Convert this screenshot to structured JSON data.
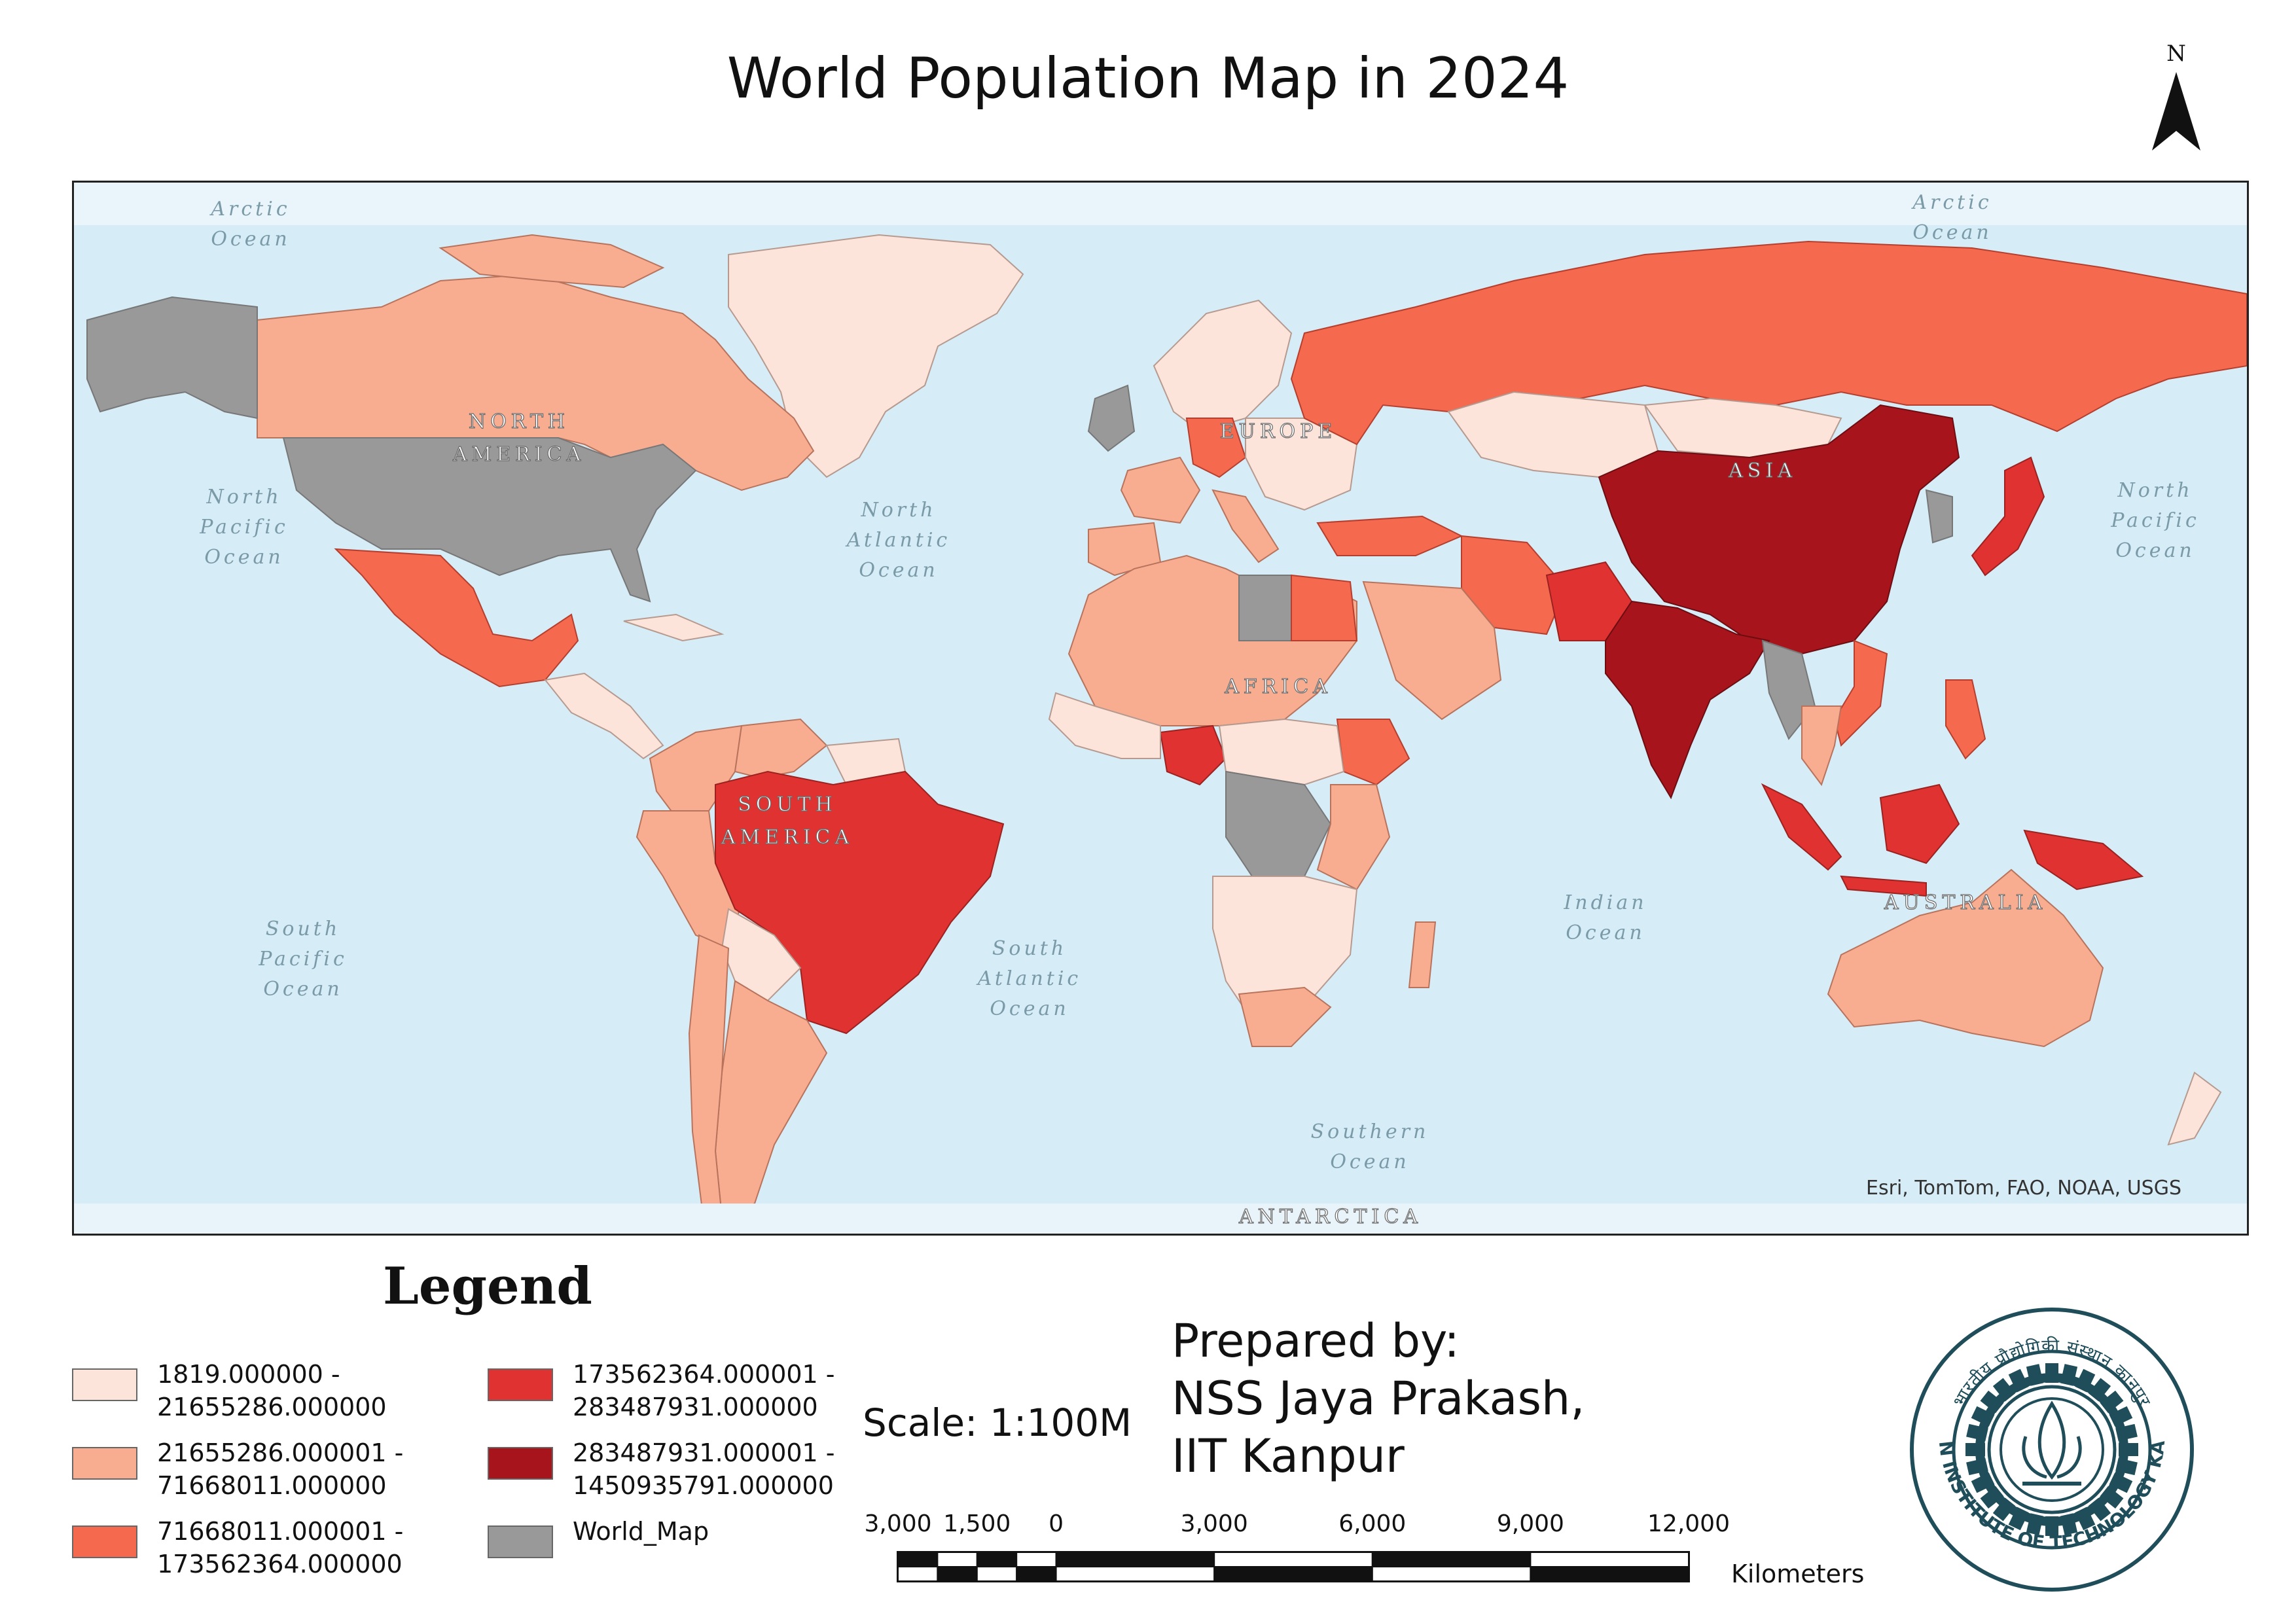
{
  "title": "World Population Map in 2024",
  "north_label": "N",
  "attribution": "Esri, TomTom, FAO, NOAA, USGS",
  "ocean_labels": [
    {
      "id": "arctic-w",
      "text": "Arctic\nOcean"
    },
    {
      "id": "arctic-e",
      "text": "Arctic\nOcean"
    },
    {
      "id": "n-pacific-w",
      "text": "North\nPacific\nOcean"
    },
    {
      "id": "n-pacific-e",
      "text": "North\nPacific\nOcean"
    },
    {
      "id": "n-atlantic",
      "text": "North\nAtlantic\nOcean"
    },
    {
      "id": "s-pacific",
      "text": "South\nPacific\nOcean"
    },
    {
      "id": "s-atlantic",
      "text": "South\nAtlantic\nOcean"
    },
    {
      "id": "indian",
      "text": "Indian\nOcean"
    },
    {
      "id": "southern",
      "text": "Southern\nOcean"
    }
  ],
  "continent_labels": [
    {
      "id": "north-america",
      "text": "NORTH\nAMERICA"
    },
    {
      "id": "europe",
      "text": "EUROPE"
    },
    {
      "id": "asia",
      "text": "ASIA"
    },
    {
      "id": "africa",
      "text": "AFRICA"
    },
    {
      "id": "south-america",
      "text": "SOUTH\nAMERICA"
    },
    {
      "id": "australia",
      "text": "AUSTRALIA"
    },
    {
      "id": "antarctica",
      "text": "ANTARCTICA"
    }
  ],
  "legend": {
    "title": "Legend",
    "items": [
      {
        "label": "1819.000000 -\n21655286.000000",
        "color": "#fde4da"
      },
      {
        "label": "21655286.000001 -\n71668011.000000",
        "color": "#f9ad90"
      },
      {
        "label": "71668011.000001 -\n173562364.000000",
        "color": "#f5694f"
      },
      {
        "label": "173562364.000001 -\n283487931.000000",
        "color": "#e03230"
      },
      {
        "label": "283487931.000001 -\n1450935791.000000",
        "color": "#a8141c"
      },
      {
        "label": "World_Map",
        "color": "#999999"
      }
    ]
  },
  "scale_text": "Scale: 1:100M",
  "scalebar": {
    "ticks": [
      "3,000",
      "1,500",
      "0",
      "3,000",
      "6,000",
      "9,000",
      "12,000"
    ],
    "tick_values": [
      -3000,
      -1500,
      0,
      3000,
      6000,
      9000,
      12000
    ],
    "unit": "Kilometers"
  },
  "prepared_by": "Prepared by:\nNSS Jaya Prakash,\nIIT Kanpur",
  "logo": {
    "outer_text": "भारतीय प्रौद्योगिकी संस्थान कानपुर",
    "inner_text": "INDIAN INSTITUTE OF TECHNOLOGY KANPUR",
    "color": "#1f4e5a"
  },
  "map_colors": {
    "ocean": "#d6ecf7",
    "low": "#fde4da",
    "lowmid": "#f9ad90",
    "mid": "#f5694f",
    "high": "#e03230",
    "top": "#a8141c",
    "nodata": "#999999"
  }
}
